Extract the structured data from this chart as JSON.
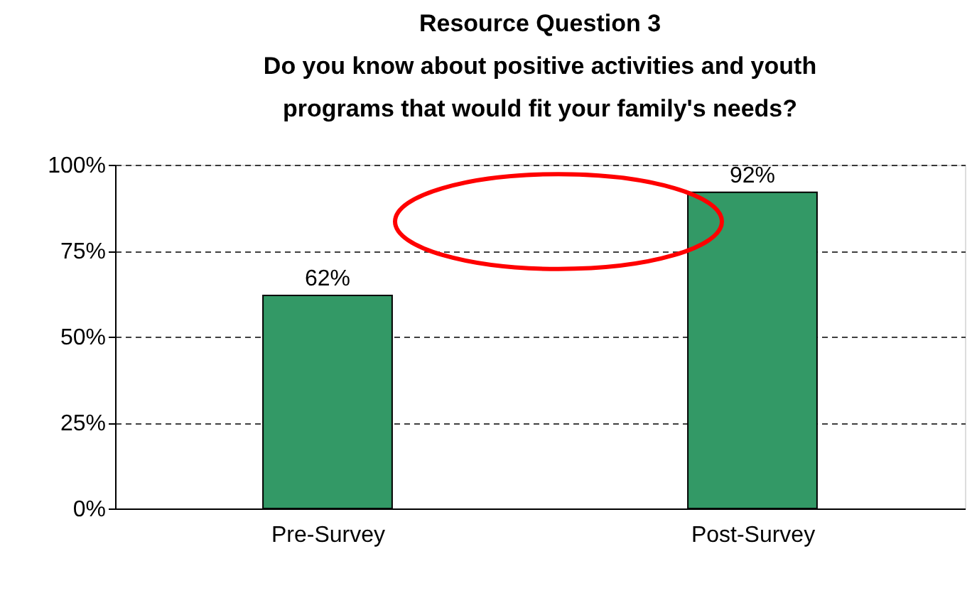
{
  "chart_data": {
    "type": "bar",
    "title": [
      "Resource Question 3",
      "Do you know about positive activities and youth",
      "programs that would fit your family's needs?"
    ],
    "categories": [
      "Pre-Survey",
      "Post-Survey"
    ],
    "values": [
      62,
      92
    ],
    "color": "#339966",
    "value_labels": [
      "62%",
      "92%"
    ],
    "ylim": [
      0,
      100
    ],
    "yticks": [
      {
        "value": 0,
        "label": "0%"
      },
      {
        "value": 25,
        "label": "25%"
      },
      {
        "value": 50,
        "label": "50%"
      },
      {
        "value": 75,
        "label": "75%"
      },
      {
        "value": 100,
        "label": "100%"
      }
    ],
    "grid": "y"
  }
}
